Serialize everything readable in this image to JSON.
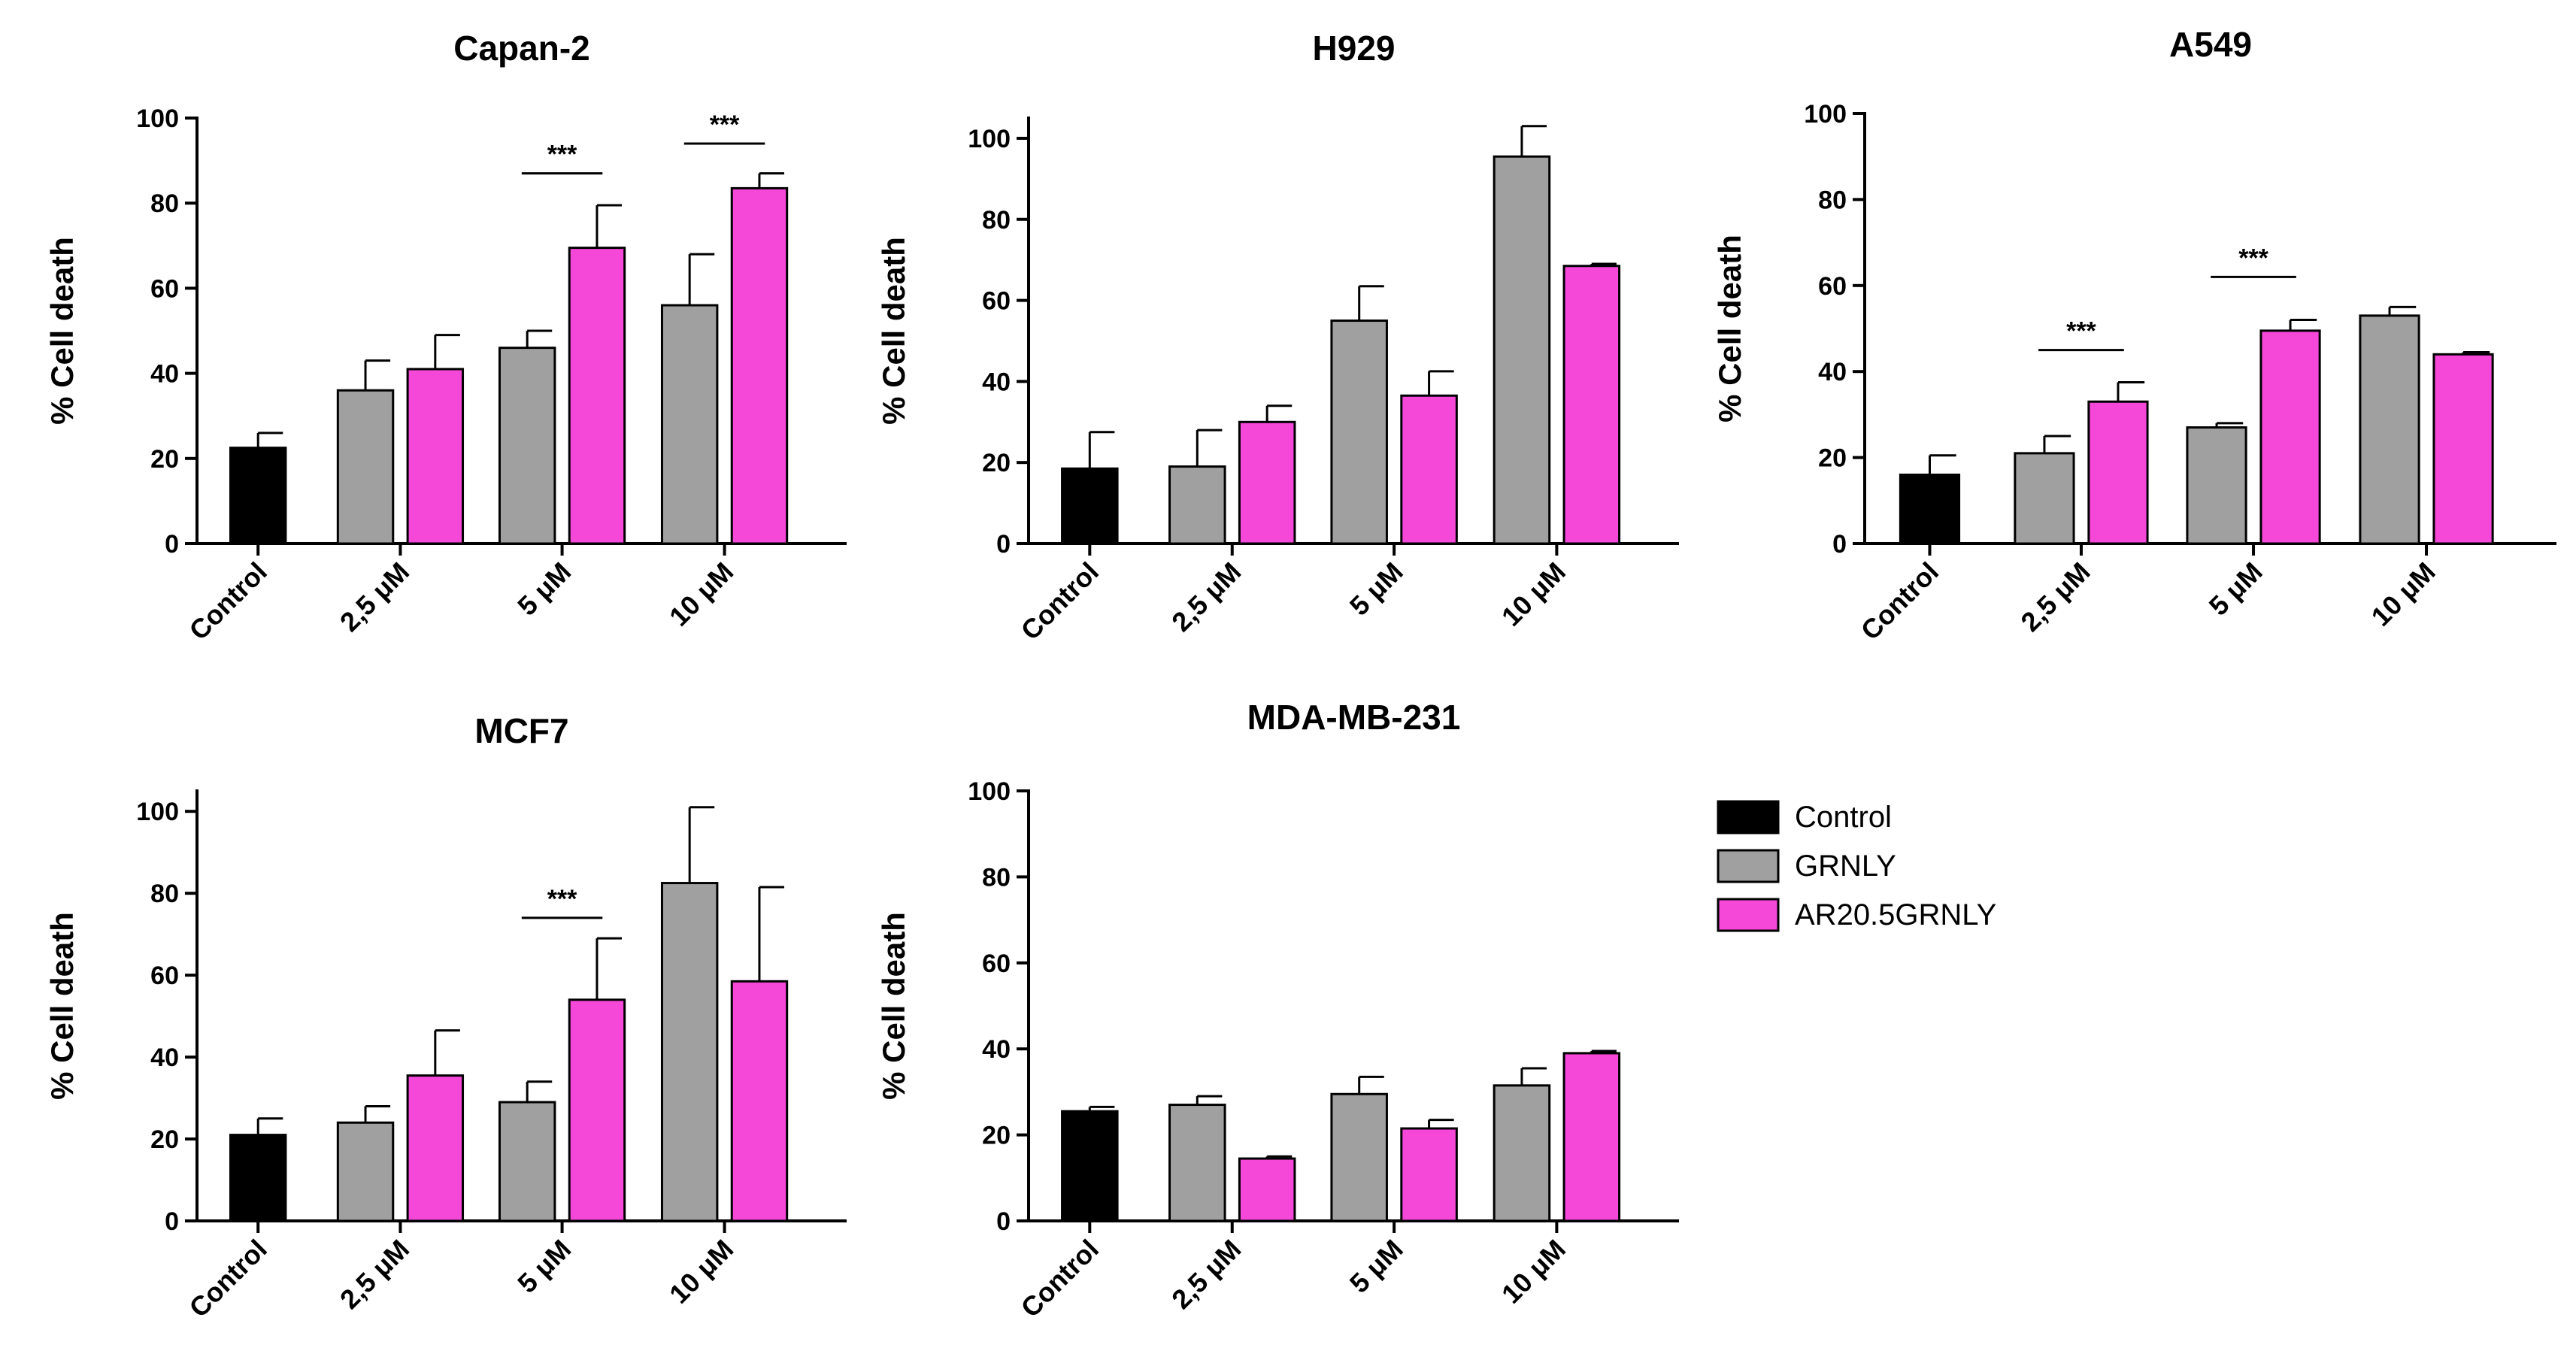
{
  "colors": {
    "Control": "#000000",
    "GRNLY": "#a0a0a0",
    "AR20.5GRNLY": "#f547d8"
  },
  "legend": {
    "position": "right",
    "items": [
      {
        "label": "Control",
        "color": "#000000"
      },
      {
        "label": "GRNLY",
        "color": "#a0a0a0"
      },
      {
        "label": "AR20.5GRNLY",
        "color": "#f547d8"
      }
    ]
  },
  "chart_data": [
    {
      "type": "bar",
      "title": "Capan-2",
      "ylabel": "% Cell death",
      "ylim": [
        0,
        100
      ],
      "yticks": [
        "0",
        "20",
        "40",
        "60",
        "80",
        "100"
      ],
      "categories": [
        "Control",
        "2,5 μM",
        "5 μM",
        "10 μM"
      ],
      "series": [
        {
          "name": "Control",
          "values": [
            22.5,
            null,
            null,
            null
          ],
          "errors": [
            3.5,
            null,
            null,
            null
          ]
        },
        {
          "name": "GRNLY",
          "values": [
            null,
            36,
            46,
            56
          ],
          "errors": [
            null,
            7,
            4,
            12
          ]
        },
        {
          "name": "AR20.5GRNLY",
          "values": [
            null,
            41,
            69.5,
            83.5
          ],
          "errors": [
            null,
            8,
            10,
            3.5
          ]
        }
      ],
      "significance": [
        {
          "category": "5 μM",
          "label": "***",
          "y": 87
        },
        {
          "category": "10 μM",
          "label": "***",
          "y": 94
        }
      ]
    },
    {
      "type": "bar",
      "title": "H929",
      "ylabel": "% Cell death",
      "ylim": [
        0,
        105
      ],
      "yticks": [
        "0",
        "20",
        "40",
        "60",
        "80",
        "100"
      ],
      "categories": [
        "Control",
        "2,5 μM",
        "5 μM",
        "10 μM"
      ],
      "series": [
        {
          "name": "Control",
          "values": [
            18.5,
            null,
            null,
            null
          ],
          "errors": [
            9,
            null,
            null,
            null
          ]
        },
        {
          "name": "GRNLY",
          "values": [
            null,
            19,
            55,
            95.5
          ],
          "errors": [
            null,
            9,
            8.5,
            7.5
          ]
        },
        {
          "name": "AR20.5GRNLY",
          "values": [
            null,
            30,
            36.5,
            68.5
          ],
          "errors": [
            null,
            4,
            6,
            0.5
          ]
        }
      ],
      "significance": []
    },
    {
      "type": "bar",
      "title": "A549",
      "ylabel": "% Cell death",
      "ylim": [
        0,
        100
      ],
      "yticks": [
        "0",
        "20",
        "40",
        "60",
        "80",
        "100"
      ],
      "categories": [
        "Control",
        "2,5 μM",
        "5 μM",
        "10 μM"
      ],
      "series": [
        {
          "name": "Control",
          "values": [
            16,
            null,
            null,
            null
          ],
          "errors": [
            4.5,
            null,
            null,
            null
          ]
        },
        {
          "name": "GRNLY",
          "values": [
            null,
            21,
            27,
            53
          ],
          "errors": [
            null,
            4,
            1,
            2
          ]
        },
        {
          "name": "AR20.5GRNLY",
          "values": [
            null,
            33,
            49.5,
            44
          ],
          "errors": [
            null,
            4.5,
            2.5,
            0.5
          ]
        }
      ],
      "significance": [
        {
          "category": "2,5 μM",
          "label": "***",
          "y": 45
        },
        {
          "category": "5 μM",
          "label": "***",
          "y": 62
        }
      ]
    },
    {
      "type": "bar",
      "title": "MCF7",
      "ylabel": "% Cell death",
      "ylim": [
        0,
        105
      ],
      "yticks": [
        "0",
        "20",
        "40",
        "60",
        "80",
        "100"
      ],
      "categories": [
        "Control",
        "2,5 μM",
        "5 μM",
        "10 μM"
      ],
      "series": [
        {
          "name": "Control",
          "values": [
            21,
            null,
            null,
            null
          ],
          "errors": [
            4,
            null,
            null,
            null
          ]
        },
        {
          "name": "GRNLY",
          "values": [
            null,
            24,
            29,
            82.5
          ],
          "errors": [
            null,
            4,
            5,
            18.5
          ]
        },
        {
          "name": "AR20.5GRNLY",
          "values": [
            null,
            35.5,
            54,
            58.5
          ],
          "errors": [
            null,
            11,
            15,
            23
          ]
        }
      ],
      "significance": [
        {
          "category": "5 μM",
          "label": "***",
          "y": 74
        }
      ]
    },
    {
      "type": "bar",
      "title": "MDA-MB-231",
      "ylabel": "% Cell death",
      "ylim": [
        0,
        100
      ],
      "yticks": [
        "0",
        "20",
        "40",
        "60",
        "80",
        "100"
      ],
      "categories": [
        "Control",
        "2,5 μM",
        "5 μM",
        "10 μM"
      ],
      "series": [
        {
          "name": "Control",
          "values": [
            25.5,
            null,
            null,
            null
          ],
          "errors": [
            1,
            null,
            null,
            null
          ]
        },
        {
          "name": "GRNLY",
          "values": [
            null,
            27,
            29.5,
            31.5
          ],
          "errors": [
            null,
            2,
            4,
            4
          ]
        },
        {
          "name": "AR20.5GRNLY",
          "values": [
            null,
            14.5,
            21.5,
            39
          ],
          "errors": [
            null,
            0.5,
            2,
            0.5
          ]
        }
      ],
      "significance": []
    }
  ]
}
